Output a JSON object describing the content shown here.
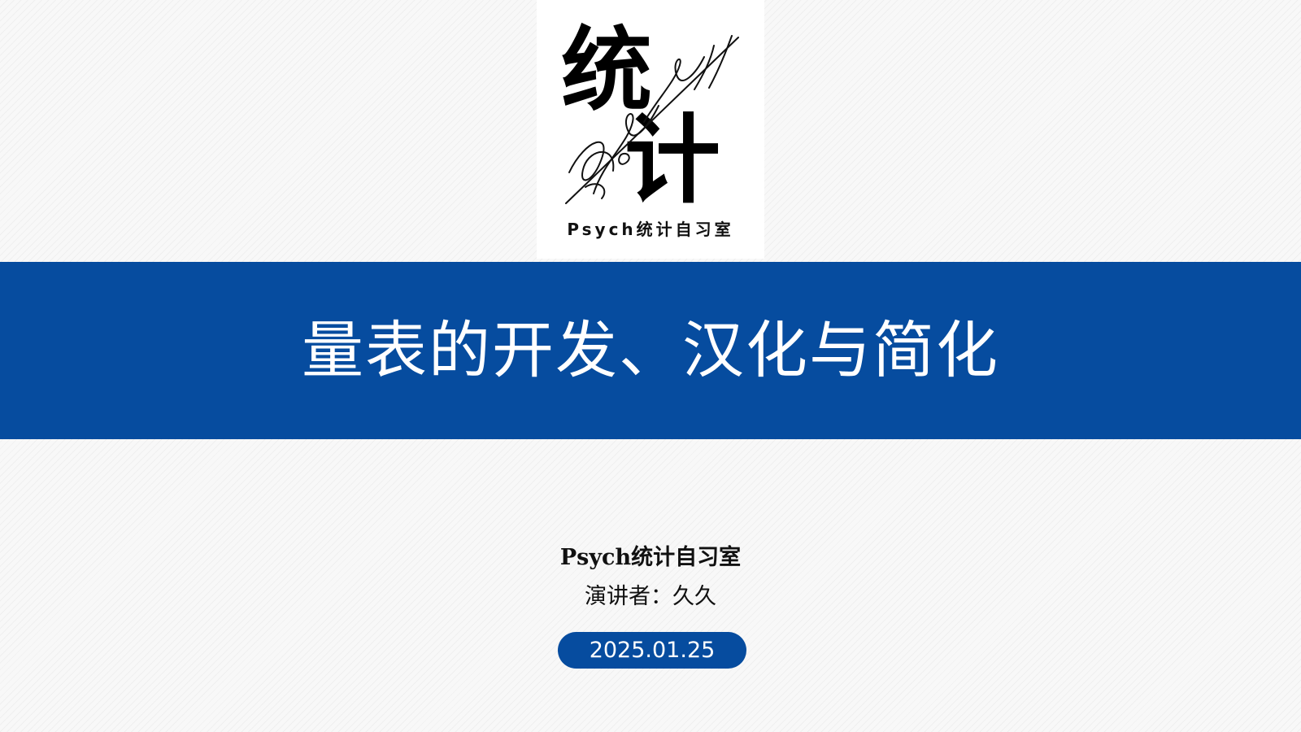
{
  "logo": {
    "big_text_top": "统",
    "big_text_bottom": "计",
    "signature_text": "Psych",
    "caption": "Psych统计自习室"
  },
  "slide": {
    "title": "量表的开发、汉化与简化",
    "org": "Psych统计自习室",
    "presenter": "演讲者：久久",
    "date": "2025.01.25"
  },
  "colors": {
    "accent_blue": "#064c9f",
    "background": "#f8f8f8",
    "text": "#111111"
  }
}
